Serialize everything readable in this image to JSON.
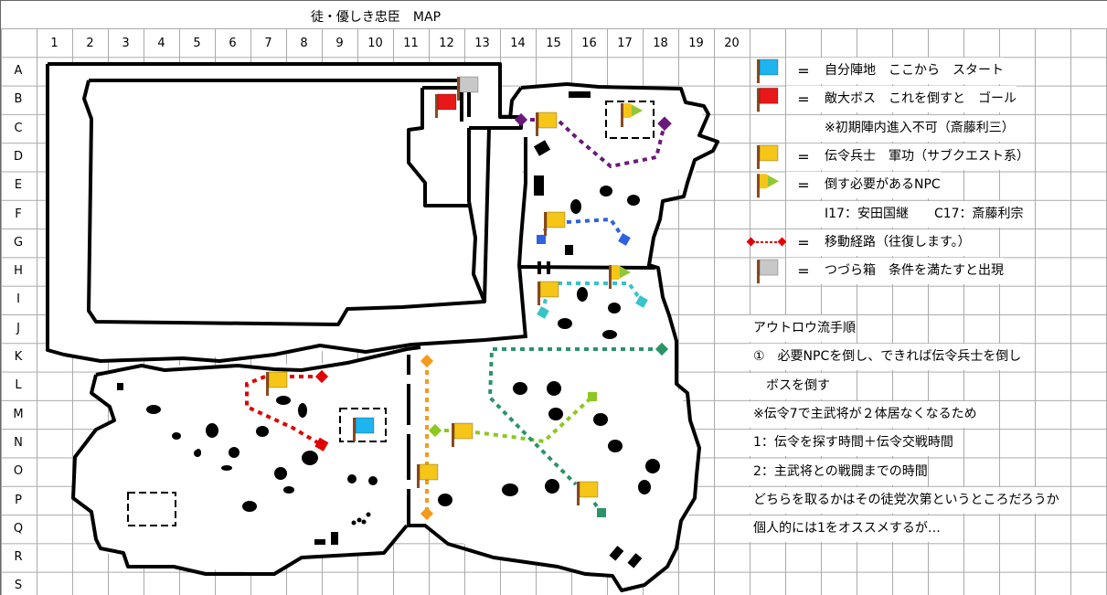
{
  "title": "徒・優しき忠臣　MAP",
  "columns": [
    "1",
    "2",
    "3",
    "4",
    "5",
    "6",
    "7",
    "8",
    "9",
    "10",
    "11",
    "12",
    "13",
    "14",
    "15",
    "16",
    "17",
    "18",
    "19",
    "20"
  ],
  "rows": [
    "A",
    "B",
    "C",
    "D",
    "E",
    "F",
    "G",
    "H",
    "I",
    "J",
    "K",
    "L",
    "M",
    "N",
    "O",
    "P",
    "Q",
    "R",
    "S"
  ],
  "legend": [
    {
      "icon": "blue-flag-icon",
      "color": "#1eb4f0",
      "eq": "=",
      "text": "自分陣地　ここから　スタート"
    },
    {
      "icon": "red-flag-icon",
      "color": "#e81818",
      "eq": "=",
      "text": "敵大ボス　これを倒すと　ゴール"
    },
    {
      "icon": "",
      "eq": "",
      "text": "※初期陣内進入不可（斎藤利三）"
    },
    {
      "icon": "yellow-flag-icon",
      "color": "#f5c518",
      "eq": "=",
      "text": "伝令兵士　軍功（サブクエスト系）"
    },
    {
      "icon": "npc-flag-icon",
      "color": "#8cc83c",
      "eq": "=",
      "text": "倒す必要があるNPC"
    },
    {
      "icon": "",
      "eq": "",
      "text": "I17：安田国継　　C17：斎藤利宗"
    },
    {
      "icon": "route-line-icon",
      "color": "#e00000",
      "eq": "=",
      "text": "移動経路（往復します。）"
    },
    {
      "icon": "gray-flag-icon",
      "color": "#c8c8c8",
      "eq": "=",
      "text": "つづら箱　条件を満たすと出現"
    }
  ],
  "notes": [
    "アウトロウ流手順",
    "①　必要NPCを倒し、できれば伝令兵士を倒し",
    "　ボスを倒す",
    "※伝令7で主武将が２体居なくなるため",
    "1：伝令を探す時間＋伝令交戦時間",
    "2：主武将との戦闘までの時間",
    "どちらを取るかはその徒党次第というところだろうか",
    "個人的には1をオススメするが…"
  ],
  "colors": {
    "route_purple": "#6a1a7a",
    "route_blue": "#2f62e0",
    "route_cyan": "#36c4c8",
    "route_red": "#e00000",
    "route_orange": "#f59a1a",
    "route_lime": "#8cc820",
    "route_green": "#2a9468",
    "wall": "#000000",
    "grid": "#aaaaaa"
  }
}
